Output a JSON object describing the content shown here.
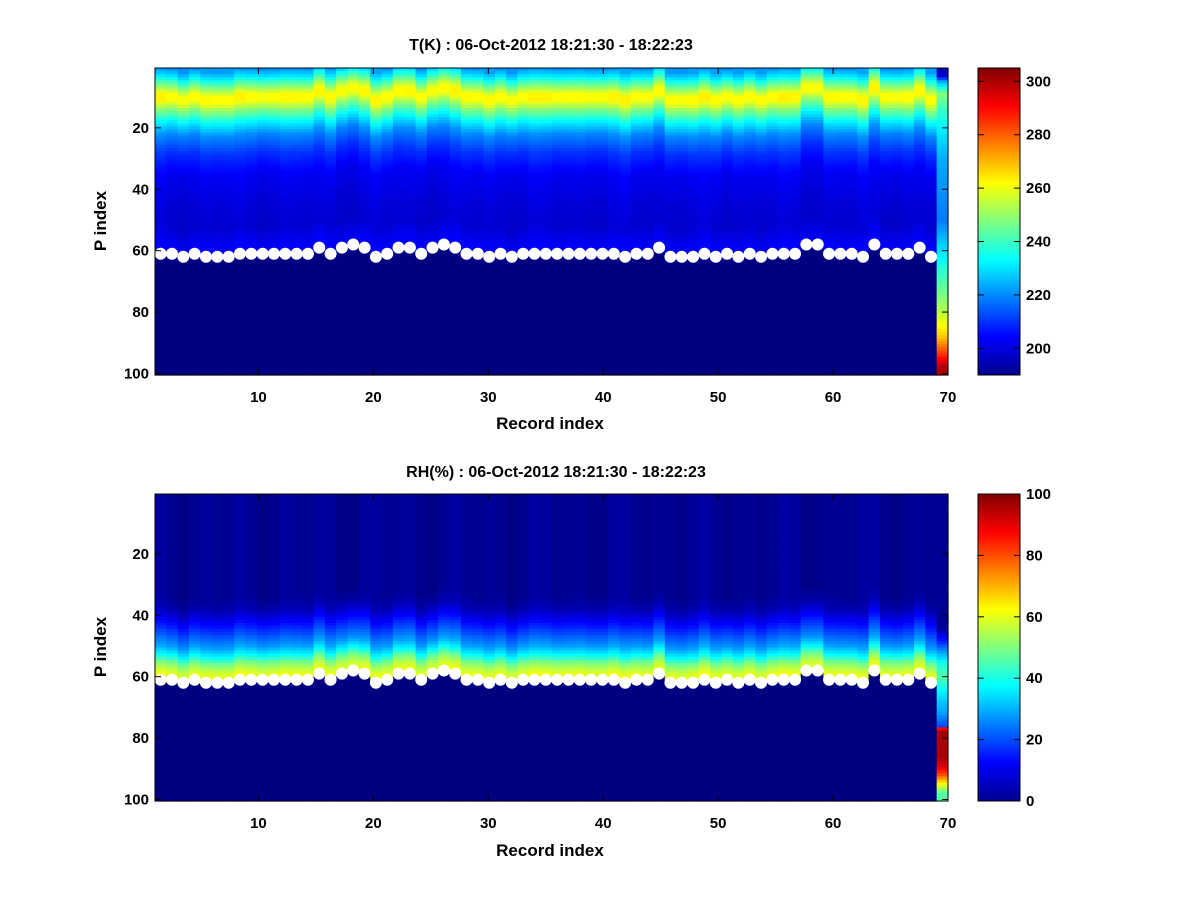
{
  "chart_data": [
    {
      "type": "heatmap",
      "title": "T(K) : 06-Oct-2012 18:21:30 - 18:22:23",
      "xlabel": "Record index",
      "ylabel": "P index",
      "xlim": [
        1,
        70
      ],
      "ylim": [
        1,
        100
      ],
      "y_reversed": true,
      "xticks": [
        "10",
        "20",
        "30",
        "40",
        "50",
        "60",
        "70"
      ],
      "yticks": [
        "20",
        "40",
        "60",
        "80",
        "100"
      ],
      "colorbar": {
        "min": 190,
        "max": 305,
        "ticks": [
          "200",
          "220",
          "240",
          "260",
          "280",
          "300"
        ],
        "colormap": "jet"
      },
      "masked_value": 190,
      "profile": {
        "p_index": [
          1,
          3,
          6,
          9,
          11,
          14,
          18,
          22,
          28,
          35,
          45,
          52,
          56,
          59,
          62,
          100
        ],
        "value": [
          222,
          230,
          246,
          262,
          262,
          248,
          232,
          220,
          210,
          203,
          200,
          199,
          202,
          204,
          190,
          190
        ]
      },
      "last_record_column": {
        "p_index": [
          1,
          3,
          5,
          9,
          14,
          20,
          30,
          50,
          60,
          62,
          66,
          72,
          80,
          88,
          94,
          98,
          100
        ],
        "value": [
          196,
          199,
          224,
          248,
          240,
          232,
          224,
          218,
          230,
          232,
          238,
          244,
          254,
          268,
          286,
          300,
          300
        ]
      },
      "surface_markers": {
        "record": [
          1,
          2,
          3,
          4,
          5,
          6,
          7,
          8,
          9,
          10,
          11,
          12,
          13,
          14,
          15,
          16,
          17,
          18,
          19,
          20,
          21,
          22,
          23,
          24,
          25,
          26,
          27,
          28,
          29,
          30,
          31,
          32,
          33,
          34,
          35,
          36,
          37,
          38,
          39,
          40,
          41,
          42,
          43,
          44,
          45,
          46,
          47,
          48,
          49,
          50,
          51,
          52,
          53,
          54,
          55,
          56,
          57,
          58,
          59,
          60,
          61,
          62,
          63,
          64,
          65,
          66,
          67,
          68,
          69
        ],
        "p_index": [
          61,
          61,
          62,
          61,
          62,
          62,
          62,
          61,
          61,
          61,
          61,
          61,
          61,
          61,
          59,
          61,
          59,
          58,
          59,
          62,
          61,
          59,
          59,
          61,
          59,
          58,
          59,
          61,
          61,
          62,
          61,
          62,
          61,
          61,
          61,
          61,
          61,
          61,
          61,
          61,
          61,
          62,
          61,
          61,
          59,
          62,
          62,
          62,
          61,
          62,
          61,
          62,
          61,
          62,
          61,
          61,
          61,
          58,
          58,
          61,
          61,
          61,
          62,
          58,
          61,
          61,
          61,
          59,
          62
        ]
      }
    },
    {
      "type": "heatmap",
      "title": "RH(%) : 06-Oct-2012 18:21:30 - 18:22:23",
      "xlabel": "Record index",
      "ylabel": "P index",
      "xlim": [
        1,
        70
      ],
      "ylim": [
        1,
        100
      ],
      "y_reversed": true,
      "xticks": [
        "10",
        "20",
        "30",
        "40",
        "50",
        "60",
        "70"
      ],
      "yticks": [
        "20",
        "40",
        "60",
        "80",
        "100"
      ],
      "colorbar": {
        "min": 0,
        "max": 100,
        "ticks": [
          "0",
          "20",
          "40",
          "60",
          "80",
          "100"
        ],
        "colormap": "jet"
      },
      "masked_value": 0,
      "profile": {
        "p_index": [
          1,
          34,
          38,
          42,
          46,
          50,
          53,
          55,
          57,
          59,
          61,
          62,
          100
        ],
        "value": [
          2,
          2,
          5,
          12,
          20,
          28,
          38,
          48,
          55,
          60,
          58,
          0,
          0
        ]
      },
      "last_record_column": {
        "p_index": [
          1,
          44,
          48,
          52,
          56,
          60,
          64,
          68,
          72,
          76,
          77,
          78,
          86,
          89,
          92,
          94,
          96,
          98,
          100
        ],
        "value": [
          2,
          2,
          14,
          28,
          40,
          46,
          38,
          32,
          28,
          20,
          88,
          96,
          96,
          92,
          80,
          68,
          56,
          46,
          46
        ]
      },
      "surface_markers": {
        "record": [
          1,
          2,
          3,
          4,
          5,
          6,
          7,
          8,
          9,
          10,
          11,
          12,
          13,
          14,
          15,
          16,
          17,
          18,
          19,
          20,
          21,
          22,
          23,
          24,
          25,
          26,
          27,
          28,
          29,
          30,
          31,
          32,
          33,
          34,
          35,
          36,
          37,
          38,
          39,
          40,
          41,
          42,
          43,
          44,
          45,
          46,
          47,
          48,
          49,
          50,
          51,
          52,
          53,
          54,
          55,
          56,
          57,
          58,
          59,
          60,
          61,
          62,
          63,
          64,
          65,
          66,
          67,
          68,
          69
        ],
        "p_index": [
          61,
          61,
          62,
          61,
          62,
          62,
          62,
          61,
          61,
          61,
          61,
          61,
          61,
          61,
          59,
          61,
          59,
          58,
          59,
          62,
          61,
          59,
          59,
          61,
          59,
          58,
          59,
          61,
          61,
          62,
          61,
          62,
          61,
          61,
          61,
          61,
          61,
          61,
          61,
          61,
          61,
          62,
          61,
          61,
          59,
          62,
          62,
          62,
          61,
          62,
          61,
          62,
          61,
          62,
          61,
          61,
          61,
          58,
          58,
          61,
          61,
          61,
          62,
          58,
          61,
          61,
          61,
          59,
          62
        ]
      }
    }
  ]
}
